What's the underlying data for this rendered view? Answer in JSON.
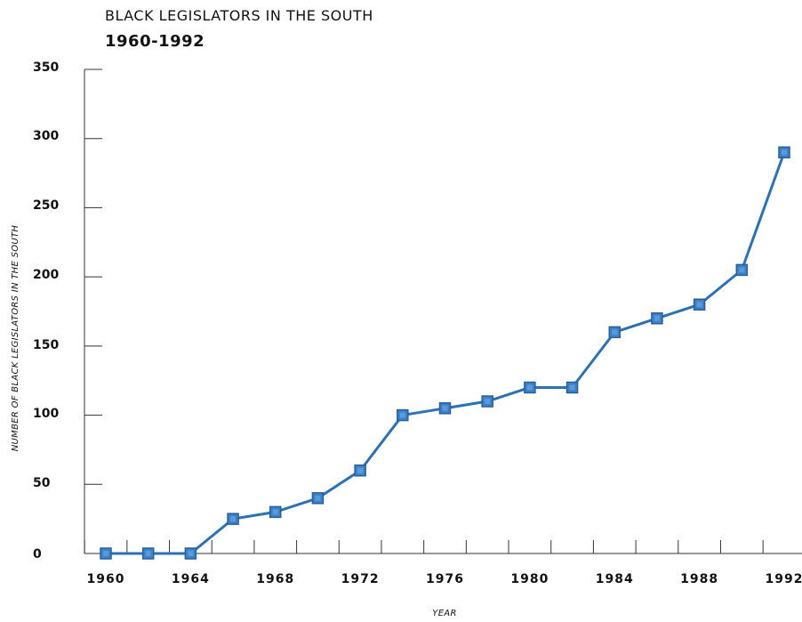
{
  "chart_data": {
    "type": "line",
    "title": "BLACK LEGISLATORS IN THE SOUTH",
    "subtitle": "1960-1992",
    "xlabel": "YEAR",
    "ylabel": "NUMBER OF BLACK LEGISLATORS IN THE SOUTH",
    "xlim": [
      1960,
      1992
    ],
    "ylim": [
      0,
      350
    ],
    "x_ticks": [
      "1960",
      "1964",
      "1968",
      "1972",
      "1976",
      "1980",
      "1984",
      "1988",
      "1992"
    ],
    "y_ticks": [
      "0",
      "50",
      "100",
      "150",
      "200",
      "250",
      "300",
      "350"
    ],
    "x": [
      1960,
      1962,
      1964,
      1966,
      1968,
      1970,
      1972,
      1974,
      1976,
      1978,
      1980,
      1982,
      1984,
      1986,
      1988,
      1990,
      1992
    ],
    "values": [
      0,
      0,
      0,
      25,
      30,
      40,
      60,
      100,
      105,
      110,
      120,
      120,
      160,
      170,
      180,
      205,
      290
    ],
    "line_color": "#2a72b5",
    "marker_color": "#2a72b5",
    "grid": false
  }
}
